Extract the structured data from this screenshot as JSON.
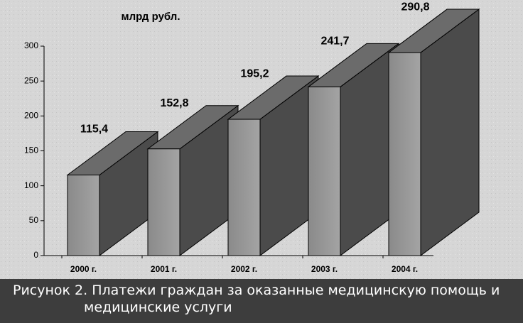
{
  "chart_data": {
    "type": "bar3d",
    "unit_label": "млрд рубл.",
    "categories": [
      "2000 г.",
      "2001 г.",
      "2002 г.",
      "2003 г.",
      "2004 г."
    ],
    "values": [
      115.4,
      152.8,
      195.2,
      241.7,
      290.8
    ],
    "value_labels": [
      "115,4",
      "152,8",
      "195,2",
      "241,7",
      "290,8"
    ],
    "color": "#959595",
    "ylim": [
      0,
      300
    ],
    "yticks": [
      0,
      50,
      100,
      150,
      200,
      250,
      300
    ]
  },
  "caption": [
    "Рисунок 2. Платежи граждан за оказанные медицинскую помощь и",
    "медицинские услуги"
  ]
}
